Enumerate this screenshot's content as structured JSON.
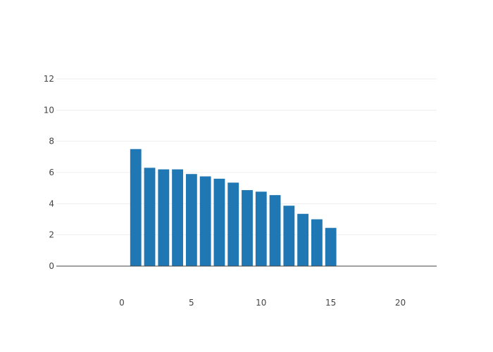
{
  "chart_data": {
    "type": "bar",
    "x": [
      1,
      2,
      3,
      4,
      5,
      6,
      7,
      8,
      9,
      10,
      11,
      12,
      13,
      14,
      15
    ],
    "values": [
      7.5,
      6.3,
      6.2,
      6.2,
      5.9,
      5.75,
      5.6,
      5.35,
      4.87,
      4.77,
      4.55,
      3.87,
      3.35,
      3.0,
      2.45
    ],
    "title": "",
    "xlabel": "",
    "ylabel": "",
    "xlim": [
      -4.7,
      22.6
    ],
    "ylim": [
      0,
      12
    ],
    "x_tick_labels": [
      "0",
      "5",
      "10",
      "15",
      "20"
    ],
    "y_tick_labels": [
      "0",
      "2",
      "4",
      "6",
      "8",
      "10",
      "12"
    ],
    "grid": true,
    "legend": "none",
    "bar_color": "#1f77b4"
  }
}
